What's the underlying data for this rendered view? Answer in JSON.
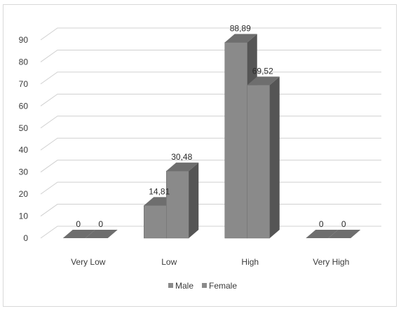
{
  "chart_data": {
    "type": "bar",
    "categories": [
      "Very Low",
      "Low",
      "High",
      "Very High"
    ],
    "series": [
      {
        "name": "Male",
        "values": [
          0,
          14.81,
          88.89,
          0
        ],
        "labels": [
          "0",
          "14,81",
          "88,89",
          "0"
        ]
      },
      {
        "name": "Female",
        "values": [
          0,
          30.48,
          69.52,
          0
        ],
        "labels": [
          "0",
          "30,48",
          "69,52",
          "0"
        ]
      }
    ],
    "yticks": [
      "0",
      "10",
      "20",
      "30",
      "40",
      "50",
      "60",
      "70",
      "80",
      "90"
    ],
    "ylim": [
      0,
      90
    ],
    "grid": true,
    "legend_position": "bottom",
    "three_d": true,
    "colors": {
      "bar_front": "#8a8a8a",
      "bar_side": "#555555",
      "bar_top": "#6e6e6e",
      "grid": "#d0d0d0"
    }
  }
}
